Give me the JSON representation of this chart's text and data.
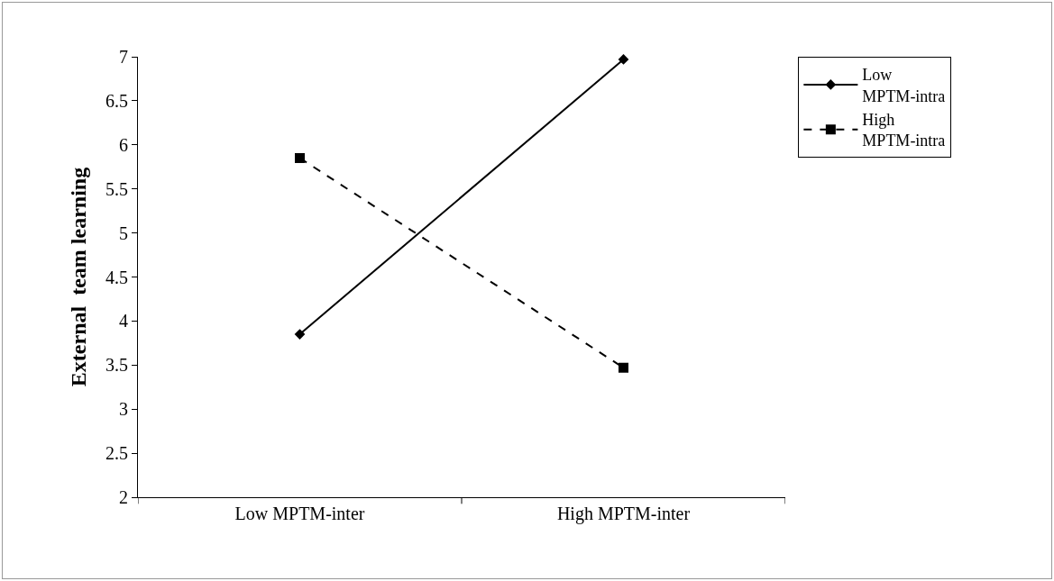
{
  "chart_data": {
    "type": "line",
    "ylabel": "External  team learning",
    "categories": [
      "Low MPTM-inter",
      "High MPTM-inter"
    ],
    "series": [
      {
        "name": "Low MPTM-intra",
        "color": "#000000",
        "values": [
          3.85,
          6.97
        ],
        "marker": "diamond",
        "line_style": "solid"
      },
      {
        "name": "High MPTM-intra",
        "color": "#000000",
        "values": [
          5.85,
          3.47
        ],
        "marker": "square",
        "line_style": "dashed"
      }
    ],
    "ylim": [
      2,
      7
    ],
    "yticks": [
      2,
      2.5,
      3,
      3.5,
      4,
      4.5,
      5,
      5.5,
      6,
      6.5,
      7
    ],
    "grid": false,
    "legend": "top right"
  }
}
